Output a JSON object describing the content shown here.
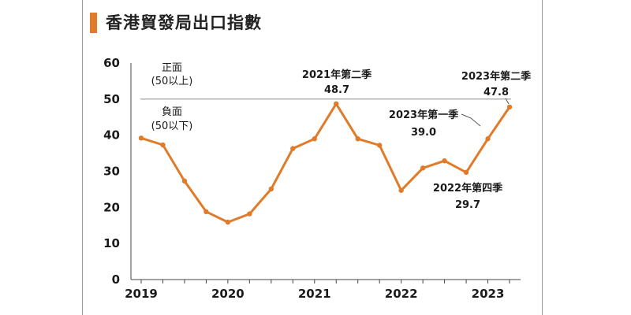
{
  "title": "香港貿發局出口指數",
  "colors": {
    "line": "#e07b2a",
    "accent": "#e07b2a",
    "threshold": "#9a9a9a",
    "axis": "#444444"
  },
  "chart_data": {
    "type": "line",
    "title": "香港貿發局出口指數",
    "xlabel": "",
    "ylabel": "",
    "ylim": [
      0,
      60
    ],
    "yticks": [
      0,
      10,
      20,
      30,
      40,
      50,
      60
    ],
    "xticks": [
      "2019",
      "2020",
      "2021",
      "2022",
      "2023"
    ],
    "grid": false,
    "threshold": 50,
    "threshold_labels": {
      "above": [
        "正面",
        "(50以上)"
      ],
      "below": [
        "負面",
        "(50以下)"
      ]
    },
    "series": [
      {
        "values": [
          39.2,
          37.3,
          27.3,
          18.8,
          15.9,
          18.2,
          25.1,
          36.3,
          39.0,
          48.7,
          39.0,
          37.2,
          24.7,
          30.9,
          32.9,
          29.7,
          39.0,
          47.8
        ]
      }
    ],
    "annotations": [
      {
        "index": 9,
        "label": "2021年第二季",
        "value": "48.7"
      },
      {
        "index": 15,
        "label": "2022年第四季",
        "value": "29.7"
      },
      {
        "index": 16,
        "label": "2023年第一季",
        "value": "39.0"
      },
      {
        "index": 17,
        "label": "2023年第二季",
        "value": "47.8"
      }
    ]
  }
}
